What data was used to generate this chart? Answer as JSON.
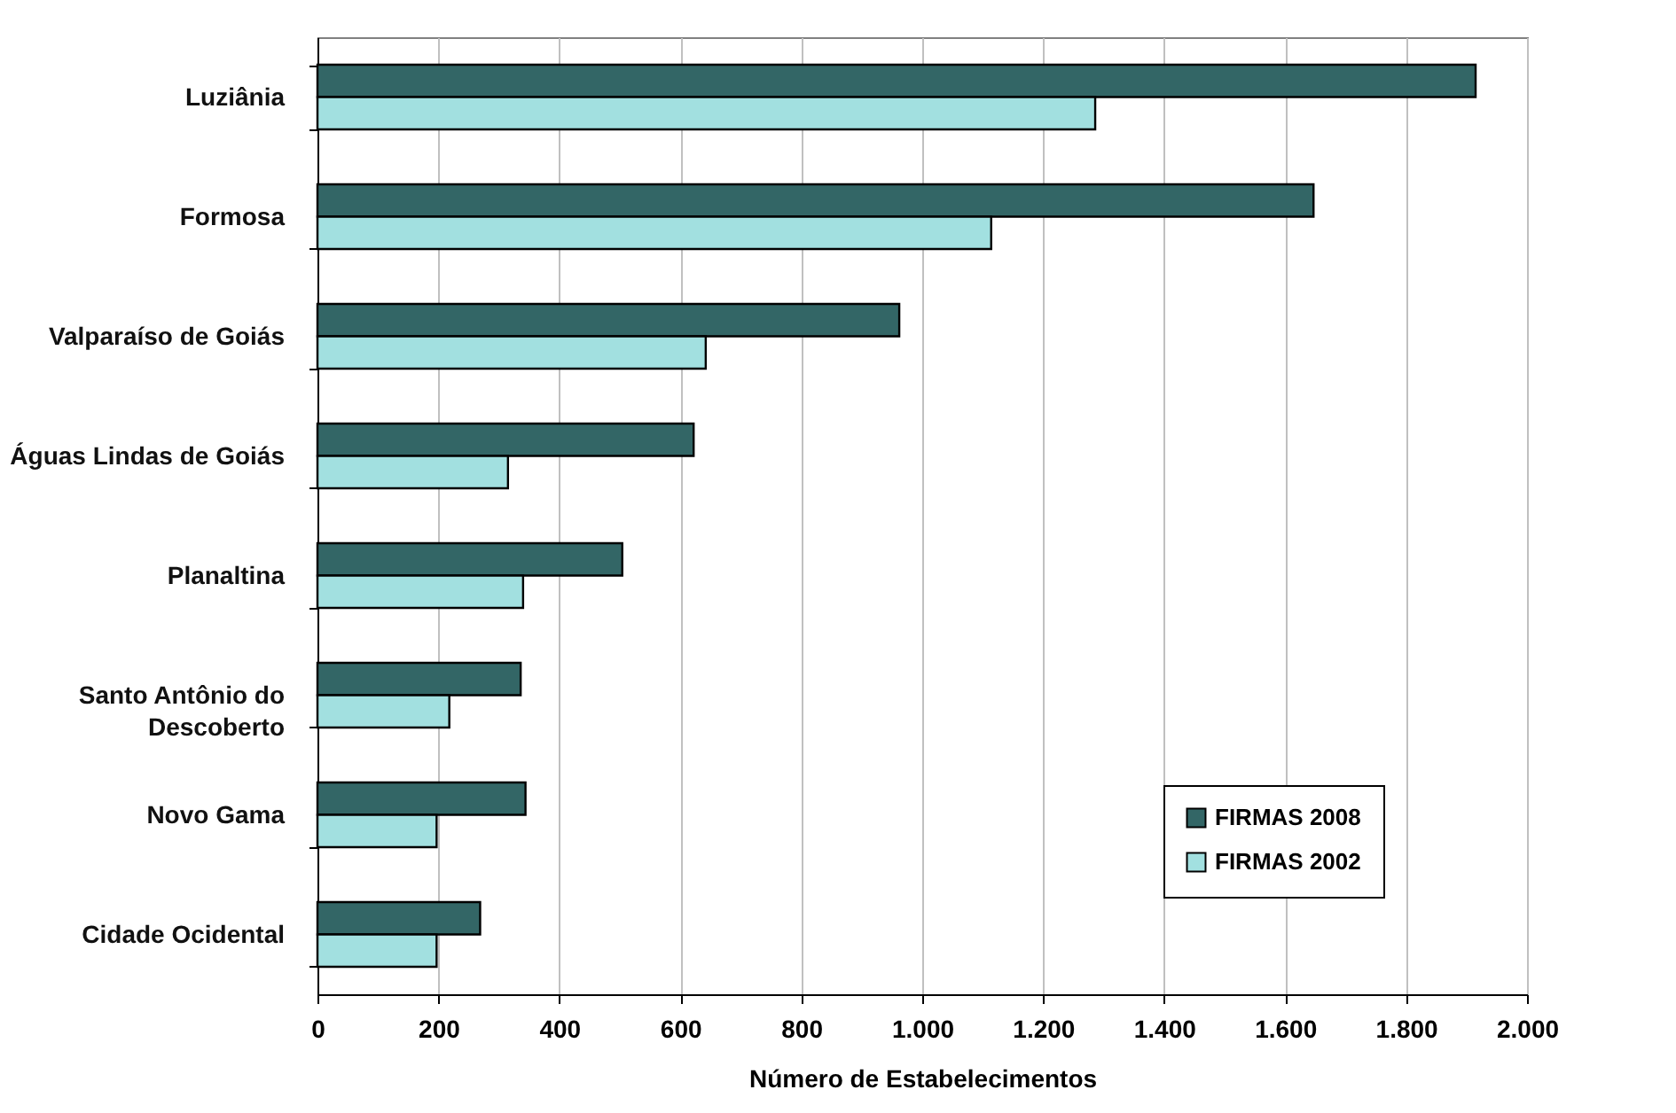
{
  "chart_data": {
    "type": "bar",
    "orientation": "horizontal",
    "xlabel": "Número de Estabelecimentos",
    "categories": [
      "Luziânia",
      "Formosa",
      "Valparaíso de Goiás",
      "Águas Lindas de Goiás",
      "Planaltina",
      "Santo Antônio do\nDescoberto",
      "Novo Gama",
      "Cidade Ocidental"
    ],
    "series": [
      {
        "name": "FIRMAS 2008",
        "color": "#336666",
        "values": [
          1915,
          1647,
          962,
          622,
          504,
          336,
          344,
          269
        ]
      },
      {
        "name": "FIRMAS 2002",
        "color": "#a2e0e0",
        "values": [
          1286,
          1114,
          642,
          315,
          340,
          218,
          197,
          197
        ]
      }
    ],
    "xlim": [
      0,
      2000
    ],
    "xticks": [
      {
        "value": 0,
        "label": "0"
      },
      {
        "value": 200,
        "label": "200"
      },
      {
        "value": 400,
        "label": "400"
      },
      {
        "value": 600,
        "label": "600"
      },
      {
        "value": 800,
        "label": "800"
      },
      {
        "value": 1000,
        "label": "1.000"
      },
      {
        "value": 1200,
        "label": "1.200"
      },
      {
        "value": 1400,
        "label": "1.400"
      },
      {
        "value": 1600,
        "label": "1.600"
      },
      {
        "value": 1800,
        "label": "1.800"
      },
      {
        "value": 2000,
        "label": "2.000"
      }
    ],
    "grid": "x",
    "legend": "bottom right"
  }
}
